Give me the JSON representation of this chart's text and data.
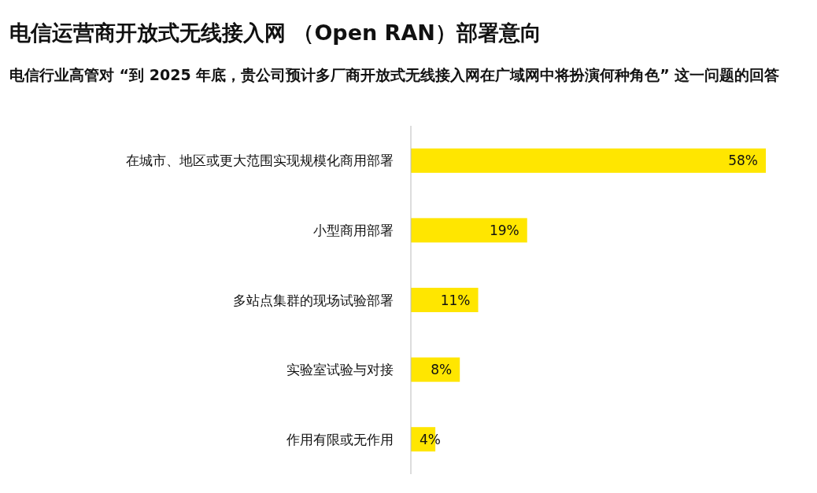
{
  "chart_data": {
    "type": "bar",
    "orientation": "horizontal",
    "title": "电信运营商开放式无线接入网 （Open RAN）部署意向",
    "subtitle": "电信行业高管对 “到 2025 年底，贵公司预计多厂商开放式无线接入网在广域网中将扮演何种角色” 这一问题的回答",
    "categories": [
      "在城市、地区或更大范围实现规模化商用部署",
      "小型商用部署",
      "多站点集群的现场试验部署",
      "实验室试验与对接",
      "作用有限或无作用"
    ],
    "values": [
      58,
      19,
      11,
      8,
      4
    ],
    "value_labels": [
      "58%",
      "19%",
      "11%",
      "8%",
      "4%"
    ],
    "color": "#ffe600"
  }
}
